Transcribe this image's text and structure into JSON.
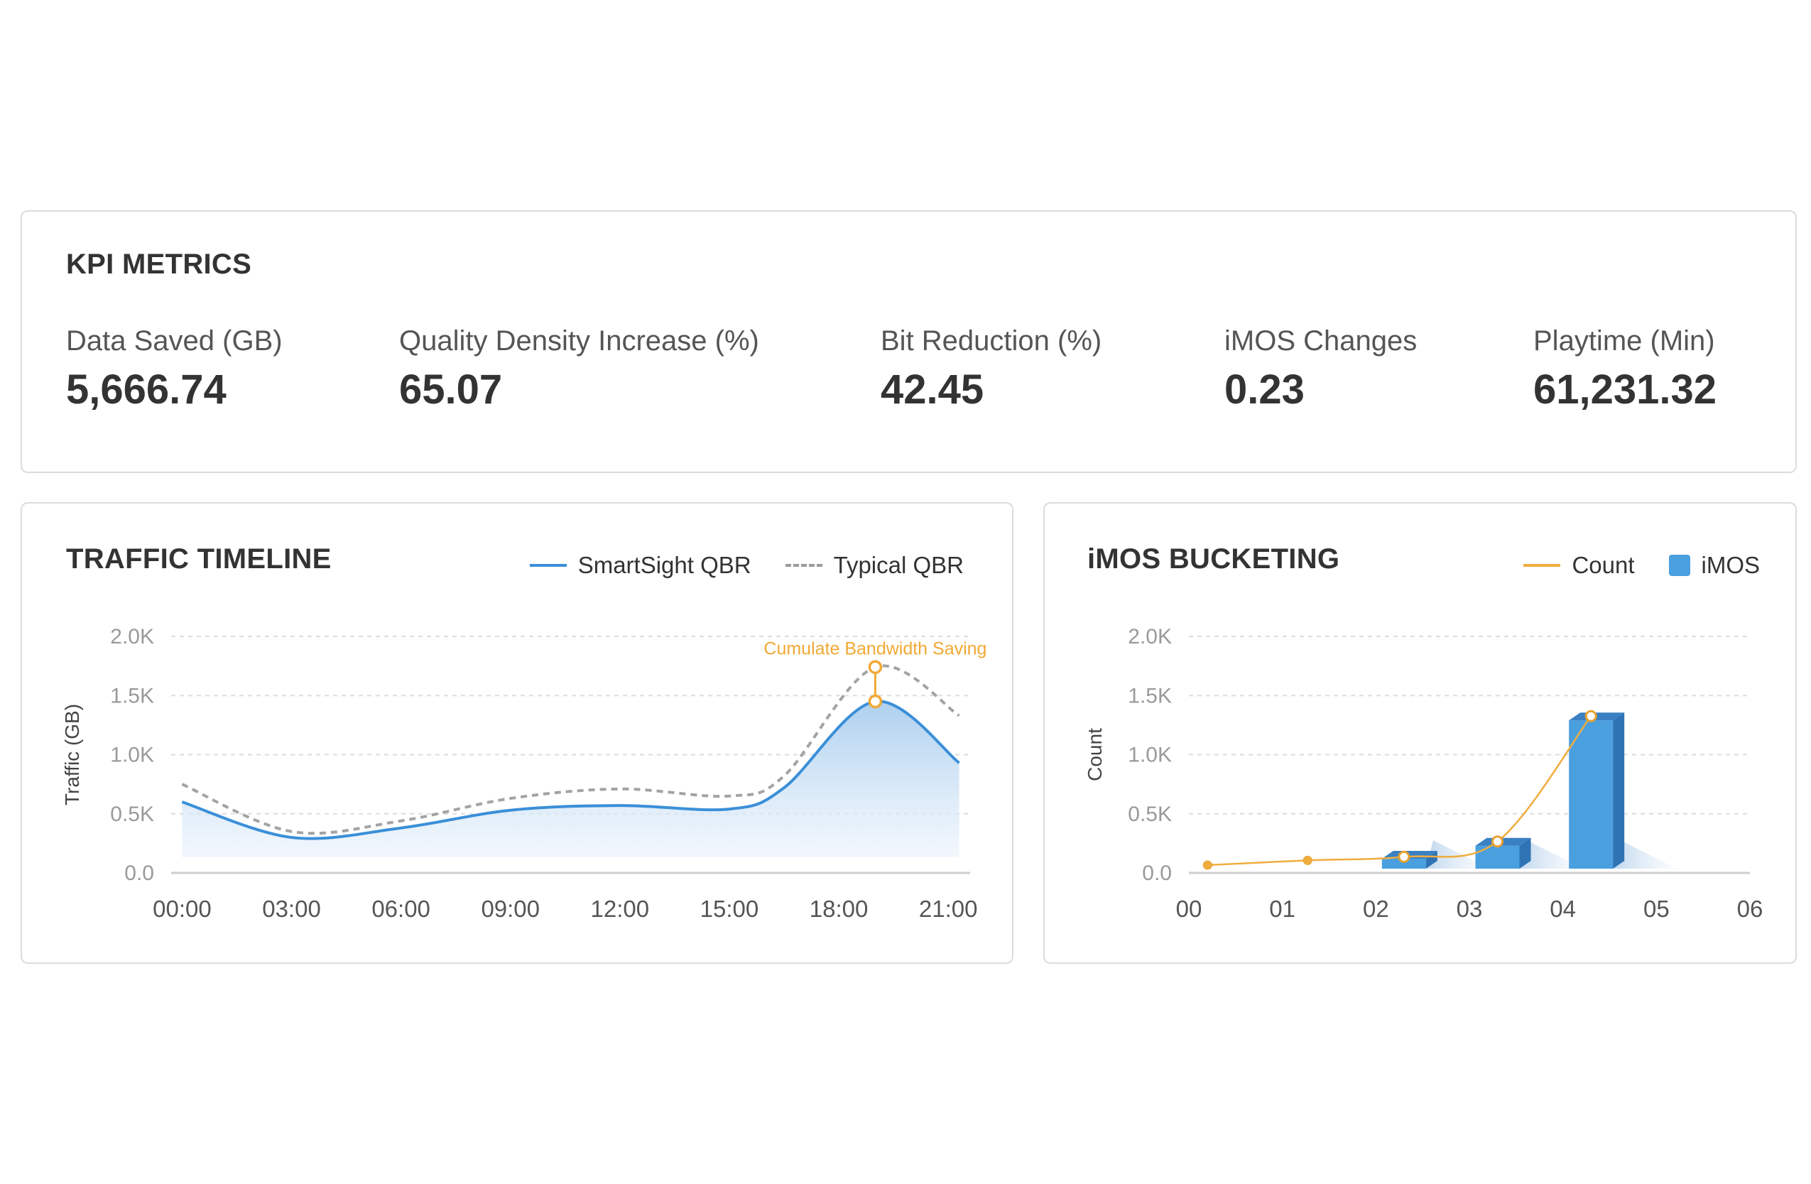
{
  "kpi": {
    "title": "KPI METRICS",
    "metrics": [
      {
        "label": "Data Saved (GB)",
        "value": "5,666.74"
      },
      {
        "label": "Quality Density Increase (%)",
        "value": "65.07"
      },
      {
        "label": "Bit Reduction (%)",
        "value": "42.45"
      },
      {
        "label": "iMOS Changes",
        "value": "0.23"
      },
      {
        "label": "Playtime (Min)",
        "value": "61,231.32"
      }
    ]
  },
  "traffic": {
    "title": "TRAFFIC TIMELINE",
    "legend": [
      {
        "label": "SmartSight QBR",
        "style": "solid",
        "color": "#3a8fd8"
      },
      {
        "label": "Typical QBR",
        "style": "dashed",
        "color": "#9b9b9b"
      }
    ]
  },
  "imos": {
    "title": "iMOS BUCKETING",
    "legend": [
      {
        "label": "Count",
        "style": "line",
        "color": "#f0ad3e"
      },
      {
        "label": "iMOS",
        "style": "box",
        "color": "#4a9fdf"
      }
    ]
  },
  "chart_data": [
    {
      "type": "area",
      "ylabel": "Traffic (GB)",
      "yticks": [
        "0.0",
        "0.5K",
        "1.0K",
        "1.5K",
        "2.0K"
      ],
      "ylim": [
        0,
        2000
      ],
      "xlim": [
        -0.3,
        21.6
      ],
      "xticks": [
        {
          "x": 0,
          "label": "00:00"
        },
        {
          "x": 3,
          "label": "03:00"
        },
        {
          "x": 6,
          "label": "06:00"
        },
        {
          "x": 9,
          "label": "09:00"
        },
        {
          "x": 12,
          "label": "12:00"
        },
        {
          "x": 15,
          "label": "15:00"
        },
        {
          "x": 18,
          "label": "18:00"
        },
        {
          "x": 21,
          "label": "21:00"
        }
      ],
      "grid": true,
      "series": [
        {
          "name": "SmartSight QBR",
          "style": "solid",
          "fill": true,
          "x": [
            0,
            3,
            6,
            9,
            12,
            15,
            16.5,
            19,
            21.3
          ],
          "y": [
            600,
            300,
            380,
            530,
            570,
            540,
            720,
            1450,
            930
          ]
        },
        {
          "name": "Typical QBR",
          "style": "dashed",
          "fill": false,
          "x": [
            0,
            3,
            6,
            9,
            12,
            15,
            16.5,
            19,
            21.3
          ],
          "y": [
            750,
            350,
            440,
            630,
            710,
            650,
            820,
            1740,
            1330
          ]
        }
      ],
      "annotation": {
        "text": "Cumulate Bandwidth Saving",
        "x": 19,
        "y_low": 1450,
        "y_high": 1740
      }
    },
    {
      "type": "bar",
      "ylabel": "Count",
      "yticks": [
        "0.0",
        "0.5K",
        "1.0K",
        "1.5K",
        "2.0K"
      ],
      "ylim": [
        0,
        2000
      ],
      "xlim": [
        0,
        6
      ],
      "categories": [
        "00",
        "01",
        "02",
        "03",
        "04",
        "05",
        "06"
      ],
      "grid": true,
      "series": [
        {
          "name": "iMOS",
          "type": "bar3d",
          "x": [
            2.3,
            3.3,
            4.3
          ],
          "values": [
            100,
            230,
            1290
          ]
        },
        {
          "name": "Count",
          "type": "line",
          "x": [
            0.2,
            1.27,
            2.3,
            3.3,
            4.3
          ],
          "values": [
            30,
            70,
            100,
            230,
            1290
          ]
        }
      ]
    }
  ]
}
